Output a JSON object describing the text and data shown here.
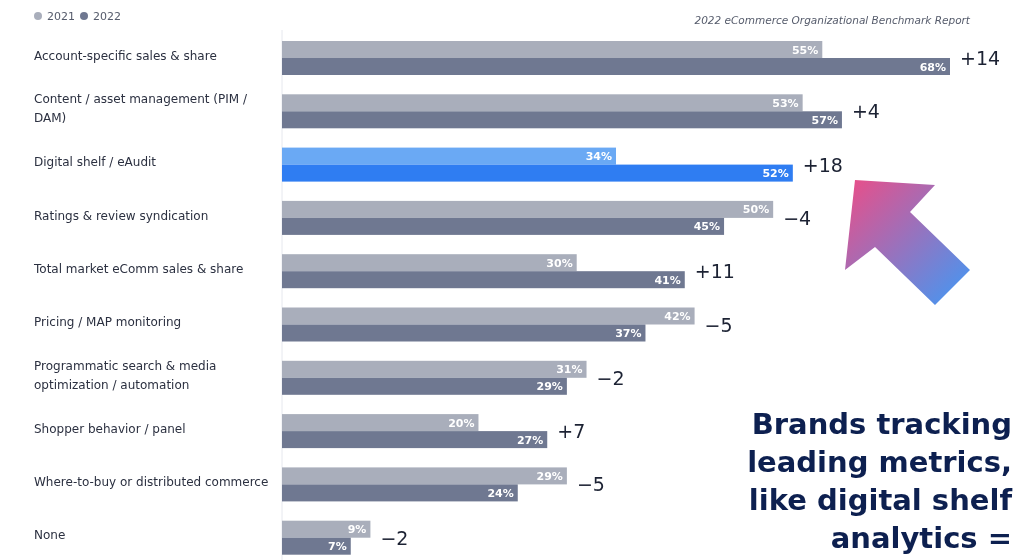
{
  "chart_data": {
    "type": "bar",
    "orientation": "horizontal",
    "legend": "top left",
    "categories": [
      "Account-specific sales & share",
      "Content / asset management (PIM / DAM)",
      "Digital shelf / eAudit",
      "Ratings & review syndication",
      "Total market eComm sales & share",
      "Pricing / MAP monitoring",
      "Programmatic search & media optimization / automation",
      "Shopper behavior / panel",
      "Where-to-buy or distributed commerce",
      "None"
    ],
    "series": [
      {
        "name": "2021",
        "color": "#a9aebb",
        "colors": [
          "#a9aebb",
          "#a9aebb",
          "#6aa9f4",
          "#a9aebb",
          "#a9aebb",
          "#a9aebb",
          "#a9aebb",
          "#a9aebb",
          "#a9aebb",
          "#a9aebb"
        ],
        "values": [
          55,
          53,
          34,
          50,
          30,
          42,
          31,
          20,
          29,
          9
        ],
        "value_labels": [
          "55%",
          "53%",
          "34%",
          "50%",
          "30%",
          "42%",
          "31%",
          "20%",
          "29%",
          "9%"
        ]
      },
      {
        "name": "2022",
        "color": "#6f7891",
        "colors": [
          "#6f7891",
          "#6f7891",
          "#2f7df2",
          "#6f7891",
          "#6f7891",
          "#6f7891",
          "#6f7891",
          "#6f7891",
          "#6f7891",
          "#6f7891"
        ],
        "values": [
          68,
          57,
          52,
          45,
          41,
          37,
          29,
          27,
          24,
          7
        ],
        "value_labels": [
          "68%",
          "57%",
          "52%",
          "45%",
          "41%",
          "37%",
          "29%",
          "27%",
          "24%",
          "7%"
        ]
      }
    ],
    "annotations": [
      {
        "text": "+14",
        "x": 68,
        "y": "Account-specific sales & share"
      },
      {
        "text": "+4",
        "x": 57,
        "y": "Content / asset management (PIM / DAM)"
      },
      {
        "text": "+18",
        "x": 52,
        "y": "Digital shelf / eAudit"
      },
      {
        "text": "−4",
        "x": 50,
        "y": "Ratings & review syndication"
      },
      {
        "text": "+11",
        "x": 41,
        "y": "Total market eComm sales & share"
      },
      {
        "text": "−5",
        "x": 42,
        "y": "Pricing / MAP monitoring"
      },
      {
        "text": "−2",
        "x": 31,
        "y": "Programmatic search & media optimization / automation"
      },
      {
        "text": "+7",
        "x": 27,
        "y": "Shopper behavior / panel"
      },
      {
        "text": "−5",
        "x": 29,
        "y": "Where-to-buy or distributed commerce"
      },
      {
        "text": "−2",
        "x": 9,
        "y": "None"
      },
      "2022 eCommerce Organizational Benchmark Report",
      "Brands tracking leading metrics, like digital shelf analytics ="
    ]
  }
}
